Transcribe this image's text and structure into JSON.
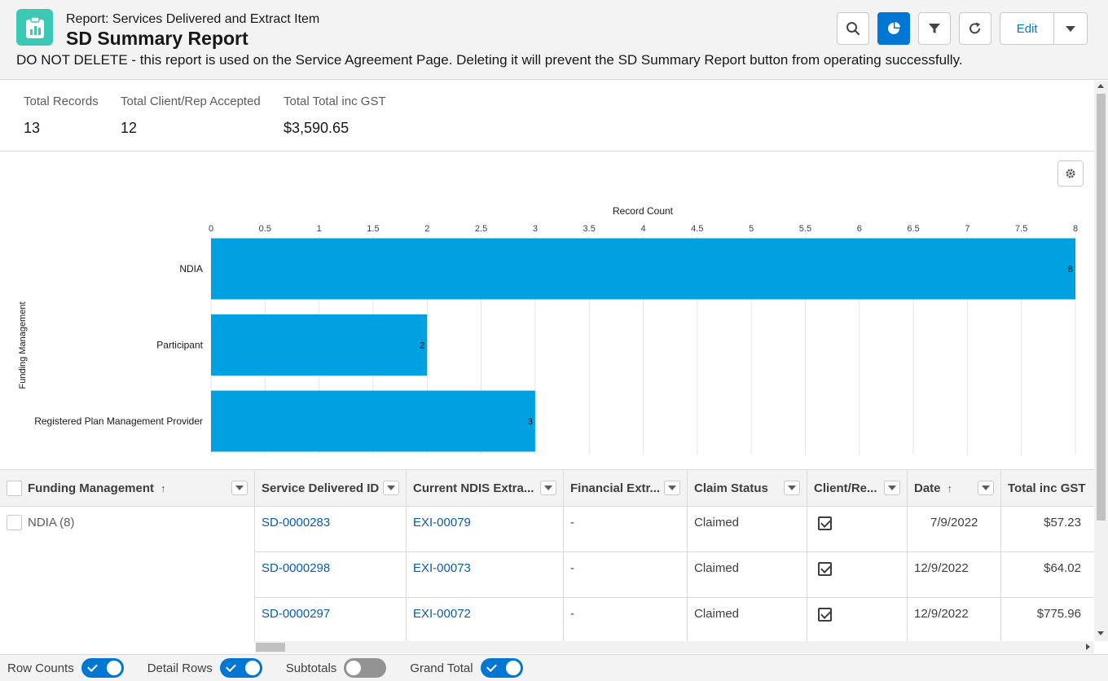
{
  "header": {
    "report_type": "Report: Services Delivered and Extract Item",
    "title": "SD Summary Report",
    "description": "DO NOT DELETE - this report is used on the Service Agreement Page. Deleting it will prevent the SD Summary Report button from operating successfully.",
    "edit_label": "Edit",
    "app_icon": "report-icon",
    "buttons": [
      "search-icon",
      "chart-icon",
      "filter-icon",
      "refresh-icon"
    ],
    "accent_color": "#0176d3"
  },
  "summary": [
    {
      "label": "Total Records",
      "value": "13"
    },
    {
      "label": "Total Client/Rep Accepted",
      "value": "12"
    },
    {
      "label": "Total Total inc GST",
      "value": "$3,590.65"
    }
  ],
  "chart_data": {
    "type": "bar",
    "orientation": "horizontal",
    "title": "Record Count",
    "xlabel": "Record Count",
    "ylabel": "Funding Management",
    "categories": [
      "NDIA",
      "Participant",
      "Registered Plan Management Provider"
    ],
    "values": [
      8,
      2,
      3
    ],
    "xlim": [
      0,
      8
    ],
    "ticks": [
      "0",
      "0.5",
      "1",
      "1.5",
      "2",
      "2.5",
      "3",
      "3.5",
      "4",
      "4.5",
      "5",
      "5.5",
      "6",
      "6.5",
      "7",
      "7.5",
      "8"
    ],
    "bar_color": "#00a1e0",
    "grid": true
  },
  "table": {
    "columns": [
      {
        "label": "Funding Management",
        "sort": "↑"
      },
      {
        "label": "Service Delivered ID",
        "sort": ""
      },
      {
        "label": "Current NDIS Extra...",
        "sort": ""
      },
      {
        "label": "Financial Extr...",
        "sort": ""
      },
      {
        "label": "Claim Status",
        "sort": ""
      },
      {
        "label": "Client/Re...",
        "sort": ""
      },
      {
        "label": "Date",
        "sort": "↑"
      },
      {
        "label": "Total inc GST",
        "sort": ""
      }
    ],
    "group": {
      "label": "NDIA (8)"
    },
    "rows": [
      {
        "sd_id": "SD-0000283",
        "extract": "EXI-00079",
        "financial": "-",
        "claim_status": "Claimed",
        "accepted": true,
        "date": "7/9/2022",
        "total": "$57.23"
      },
      {
        "sd_id": "SD-0000298",
        "extract": "EXI-00073",
        "financial": "-",
        "claim_status": "Claimed",
        "accepted": true,
        "date": "12/9/2022",
        "total": "$64.02"
      },
      {
        "sd_id": "SD-0000297",
        "extract": "EXI-00072",
        "financial": "-",
        "claim_status": "Claimed",
        "accepted": true,
        "date": "12/9/2022",
        "total": "$775.96"
      }
    ]
  },
  "footer": {
    "toggles": [
      {
        "label": "Row Counts",
        "on": true
      },
      {
        "label": "Detail Rows",
        "on": true
      },
      {
        "label": "Subtotals",
        "on": false
      },
      {
        "label": "Grand Total",
        "on": true
      }
    ]
  }
}
